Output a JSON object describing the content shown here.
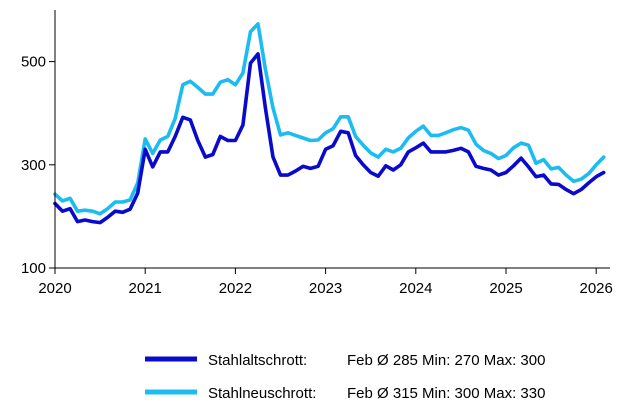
{
  "chart_data": {
    "type": "line",
    "title": "",
    "xlabel": "",
    "ylabel": "",
    "x_ticks": [
      "2020",
      "2021",
      "2022",
      "2023",
      "2024",
      "2025",
      "2026"
    ],
    "y_ticks": [
      "100",
      "300",
      "500"
    ],
    "xlim": [
      2020.0,
      2026.12
    ],
    "ylim": [
      100,
      600
    ],
    "grid": false,
    "legend_position": "bottom-right",
    "colors": {
      "Stahlaltschrott": "#0A0ACD",
      "Stahlneuschrott": "#1CBCF2"
    },
    "x": [
      2020.0,
      2020.083,
      2020.167,
      2020.25,
      2020.333,
      2020.417,
      2020.5,
      2020.583,
      2020.667,
      2020.75,
      2020.833,
      2020.917,
      2021.0,
      2021.083,
      2021.167,
      2021.25,
      2021.333,
      2021.417,
      2021.5,
      2021.583,
      2021.667,
      2021.75,
      2021.833,
      2021.917,
      2022.0,
      2022.083,
      2022.167,
      2022.25,
      2022.333,
      2022.417,
      2022.5,
      2022.583,
      2022.667,
      2022.75,
      2022.833,
      2022.917,
      2023.0,
      2023.083,
      2023.167,
      2023.25,
      2023.333,
      2023.417,
      2023.5,
      2023.583,
      2023.667,
      2023.75,
      2023.833,
      2023.917,
      2024.0,
      2024.083,
      2024.167,
      2024.25,
      2024.333,
      2024.417,
      2024.5,
      2024.583,
      2024.667,
      2024.75,
      2024.833,
      2024.917,
      2025.0,
      2025.083,
      2025.167,
      2025.25,
      2025.333,
      2025.417,
      2025.5,
      2025.583,
      2025.667,
      2025.75,
      2025.833,
      2025.917,
      2026.0,
      2026.083
    ],
    "series": [
      {
        "name": "Stahlaltschrott:",
        "values": [
          225,
          210,
          215,
          190,
          193,
          190,
          188,
          198,
          210,
          208,
          214,
          245,
          330,
          296,
          325,
          325,
          355,
          392,
          387,
          347,
          315,
          320,
          355,
          347,
          347,
          377,
          497,
          515,
          410,
          315,
          280,
          280,
          288,
          297,
          293,
          297,
          330,
          337,
          365,
          362,
          318,
          300,
          285,
          278,
          298,
          290,
          300,
          325,
          333,
          342,
          325,
          325,
          325,
          328,
          332,
          325,
          297,
          293,
          290,
          280,
          285,
          298,
          313,
          296,
          277,
          280,
          263,
          262,
          252,
          244,
          252,
          265,
          277,
          285
        ]
      },
      {
        "name": "Stahlneuschrott:",
        "values": [
          243,
          230,
          235,
          210,
          212,
          210,
          205,
          215,
          228,
          228,
          232,
          265,
          350,
          322,
          348,
          355,
          390,
          455,
          462,
          450,
          437,
          437,
          460,
          465,
          455,
          478,
          558,
          573,
          485,
          410,
          358,
          362,
          357,
          352,
          347,
          348,
          362,
          370,
          393,
          393,
          355,
          338,
          323,
          315,
          330,
          325,
          332,
          352,
          365,
          375,
          357,
          357,
          362,
          368,
          372,
          367,
          340,
          328,
          322,
          312,
          318,
          333,
          342,
          338,
          303,
          310,
          292,
          295,
          280,
          268,
          272,
          283,
          300,
          315
        ]
      }
    ],
    "legend": [
      {
        "label": "Stahlaltschrott:",
        "stats": "Feb Ø 285 Min: 270 Max: 300"
      },
      {
        "label": "Stahlneuschrott:",
        "stats": "Feb Ø 315 Min: 300 Max: 330"
      }
    ]
  }
}
